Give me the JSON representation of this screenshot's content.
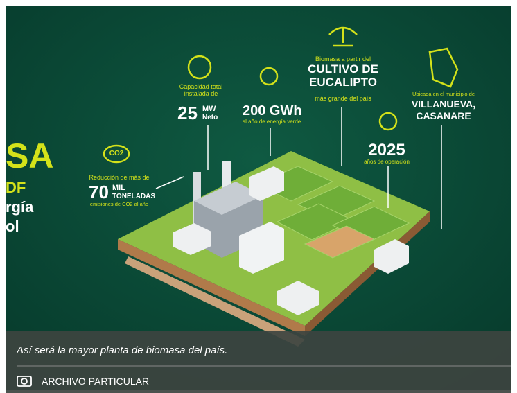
{
  "infographic": {
    "left_title": [
      "SA",
      "DF",
      "rgía",
      "ol"
    ],
    "co2": {
      "icon": "CO2",
      "intro": "Reducción de más de",
      "number": "70",
      "unit_top": "MIL",
      "unit_bottom": "TONELADAS",
      "note": "emisiones de CO2 al año"
    },
    "capacity": {
      "intro": "Capacidad total instalada de",
      "number": "25",
      "unit_top": "MW",
      "unit_bottom": "Neto"
    },
    "energy": {
      "number": "200 GWh",
      "note": "al año de energía verde"
    },
    "biomass": {
      "intro": "Biomasa a partir del",
      "title": "CULTIVO DE EUCALIPTO",
      "note": "más grande del país"
    },
    "years": {
      "number": "2025",
      "note": "años de operación"
    },
    "location": {
      "intro": "Ubicada en el municipio de",
      "title_1": "VILLANUEVA,",
      "title_2": "CASANARE"
    }
  },
  "caption": {
    "text": "Así será la mayor planta de biomasa del país.",
    "credit": "ARCHIVO PARTICULAR"
  }
}
